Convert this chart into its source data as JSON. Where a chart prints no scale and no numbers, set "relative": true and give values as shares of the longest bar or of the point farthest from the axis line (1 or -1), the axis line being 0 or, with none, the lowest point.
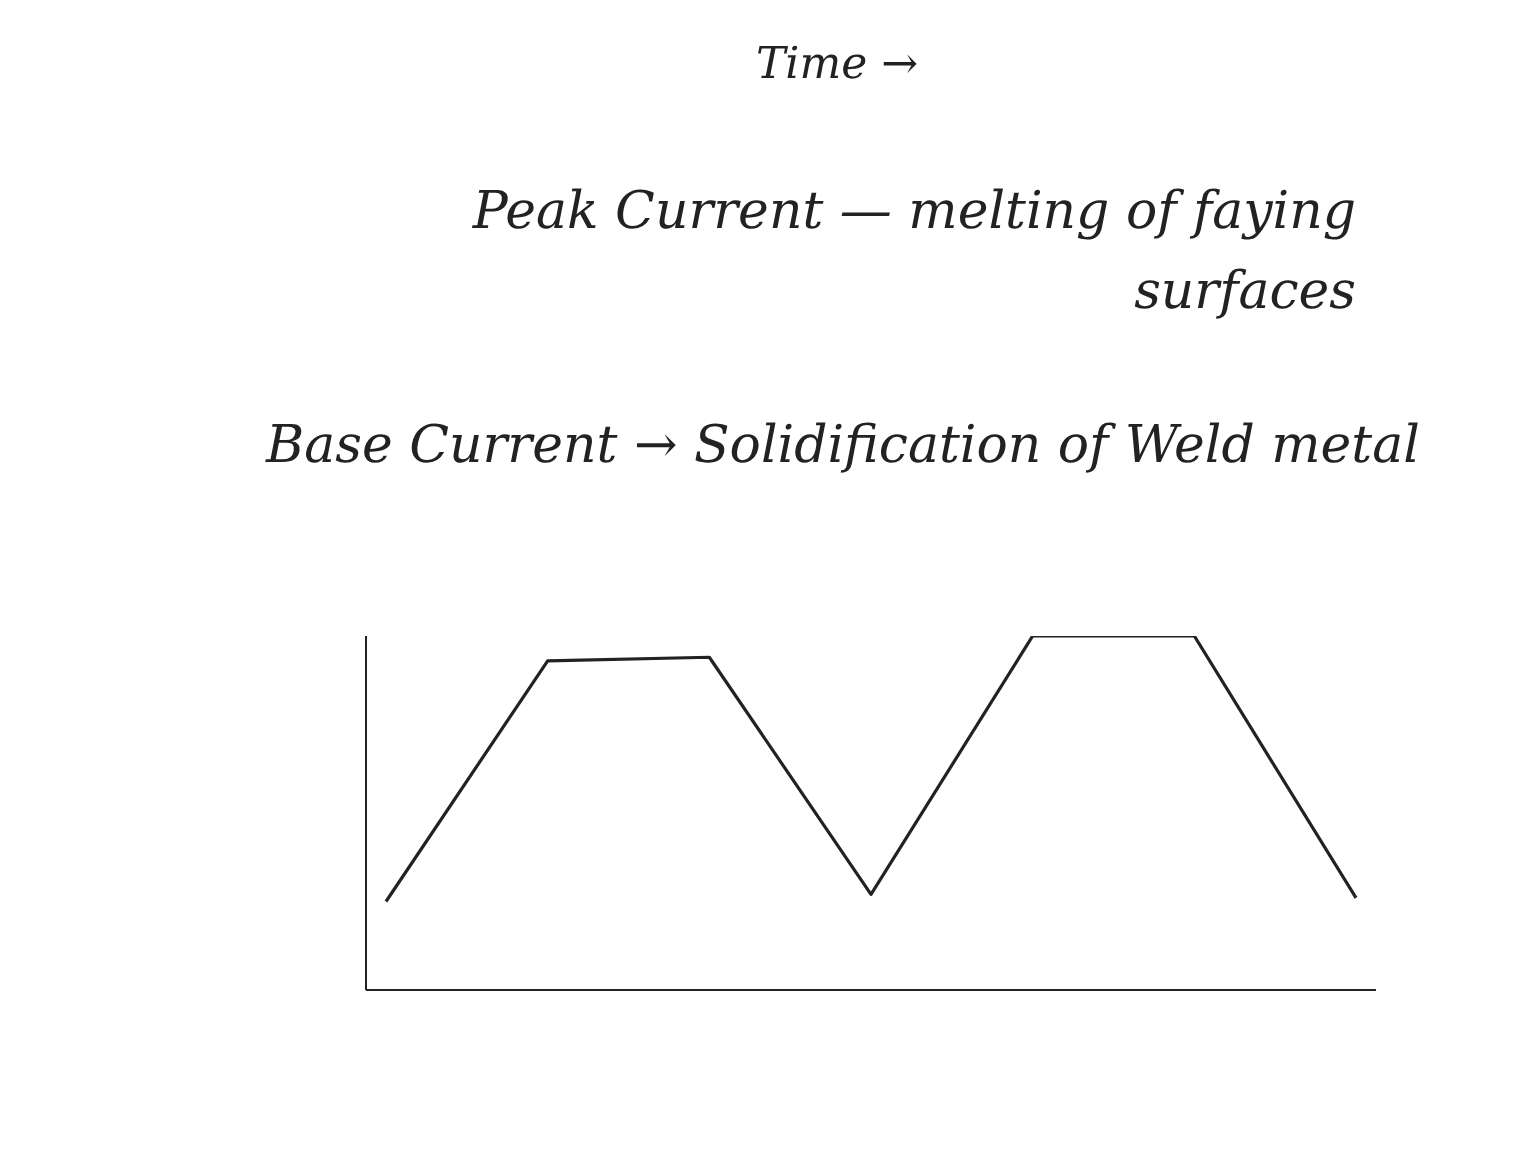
{
  "chart_data": {
    "type": "line",
    "relative": true,
    "annotations": [
      "Time →",
      "Peak Current — melting of faying surfaces",
      "Base Current → Solidification of Weld metal"
    ],
    "categories": [
      null,
      null,
      null,
      null,
      null,
      null,
      null
    ],
    "series": [
      {
        "color": "#222222",
        "values": [
          0.25,
          0.93,
          0.94,
          0.27,
          1,
          1,
          0.26
        ]
      }
    ],
    "marker": "none",
    "line_style": "solid",
    "grid": false
  }
}
